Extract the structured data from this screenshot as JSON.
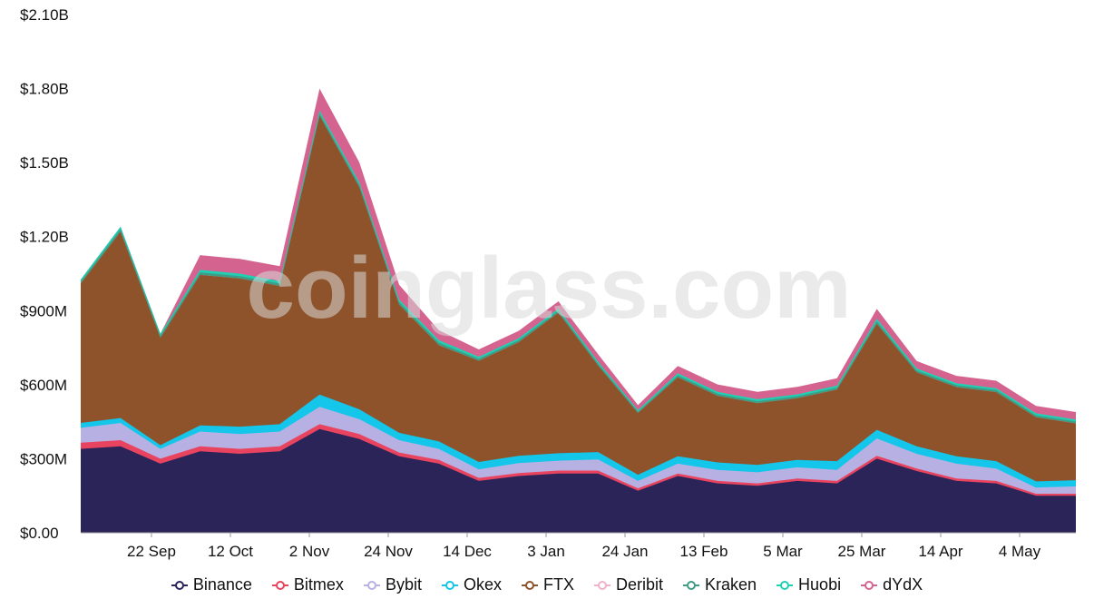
{
  "watermark": "coinglass.com",
  "chart_data": {
    "type": "area",
    "stacked": true,
    "ylim": [
      0,
      2100000000
    ],
    "yticks": [
      {
        "value": 0,
        "label": "$0.00"
      },
      {
        "value": 300000000,
        "label": "$300M"
      },
      {
        "value": 600000000,
        "label": "$600M"
      },
      {
        "value": 900000000,
        "label": "$900M"
      },
      {
        "value": 1200000000,
        "label": "$1.20B"
      },
      {
        "value": 1500000000,
        "label": "$1.50B"
      },
      {
        "value": 1800000000,
        "label": "$1.80B"
      },
      {
        "value": 2100000000,
        "label": "$2.10B"
      }
    ],
    "xticks": [
      "22 Sep",
      "12 Oct",
      "2 Nov",
      "24 Nov",
      "14 Dec",
      "3 Jan",
      "24 Jan",
      "13 Feb",
      "5 Mar",
      "25 Mar",
      "14 Apr",
      "4 May"
    ],
    "x": [
      "2 Sep",
      "12 Sep",
      "22 Sep",
      "2 Oct",
      "12 Oct",
      "22 Oct",
      "2 Nov",
      "12 Nov",
      "24 Nov",
      "4 Dec",
      "14 Dec",
      "24 Dec",
      "3 Jan",
      "13 Jan",
      "24 Jan",
      "3 Feb",
      "13 Feb",
      "23 Feb",
      "5 Mar",
      "15 Mar",
      "25 Mar",
      "4 Apr",
      "14 Apr",
      "24 Apr",
      "4 May",
      "14 May"
    ],
    "series": [
      {
        "name": "Binance",
        "color": "#2b2459",
        "values": [
          340,
          350,
          280,
          330,
          320,
          330,
          420,
          380,
          310,
          280,
          210,
          230,
          240,
          240,
          170,
          230,
          200,
          190,
          210,
          200,
          300,
          250,
          210,
          200,
          150,
          150
        ]
      },
      {
        "name": "Bitmex",
        "color": "#e8435f",
        "values": [
          25,
          25,
          20,
          20,
          20,
          20,
          20,
          20,
          15,
          15,
          12,
          12,
          12,
          12,
          10,
          10,
          10,
          10,
          10,
          10,
          12,
          10,
          10,
          10,
          8,
          8
        ]
      },
      {
        "name": "Bybit",
        "color": "#b7b0e2",
        "values": [
          60,
          70,
          40,
          60,
          60,
          60,
          70,
          60,
          50,
          45,
          35,
          40,
          40,
          45,
          30,
          40,
          45,
          45,
          45,
          45,
          70,
          60,
          60,
          50,
          25,
          30
        ]
      },
      {
        "name": "Okex",
        "color": "#13c6ea",
        "values": [
          20,
          20,
          15,
          25,
          30,
          30,
          50,
          40,
          30,
          30,
          30,
          30,
          30,
          30,
          25,
          30,
          30,
          30,
          30,
          35,
          35,
          30,
          30,
          30,
          25,
          25
        ]
      },
      {
        "name": "FTX",
        "color": "#8e532b",
        "values": [
          565,
          755,
          435,
          610,
          600,
          560,
          1130,
          900,
          520,
          390,
          410,
          460,
          570,
          350,
          250,
          320,
          270,
          250,
          250,
          290,
          430,
          300,
          280,
          280,
          260,
          230
        ]
      },
      {
        "name": "Deribit",
        "color": "#f0b2ca",
        "values": [
          0,
          0,
          0,
          0,
          0,
          0,
          0,
          0,
          0,
          0,
          0,
          0,
          0,
          0,
          0,
          0,
          0,
          0,
          0,
          0,
          0,
          0,
          0,
          0,
          0,
          0
        ]
      },
      {
        "name": "Kraken",
        "color": "#3e9d86",
        "values": [
          8,
          10,
          8,
          10,
          10,
          10,
          10,
          10,
          10,
          10,
          8,
          8,
          8,
          8,
          6,
          8,
          8,
          8,
          8,
          8,
          10,
          8,
          8,
          8,
          8,
          8
        ]
      },
      {
        "name": "Huobi",
        "color": "#1fd0b3",
        "values": [
          8,
          10,
          8,
          10,
          10,
          10,
          10,
          10,
          10,
          10,
          8,
          8,
          8,
          8,
          6,
          8,
          8,
          8,
          8,
          8,
          10,
          8,
          8,
          8,
          8,
          8
        ]
      },
      {
        "name": "dYdX",
        "color": "#d4648f",
        "values": [
          0,
          0,
          0,
          60,
          60,
          60,
          90,
          80,
          60,
          40,
          30,
          30,
          30,
          30,
          20,
          30,
          30,
          30,
          30,
          30,
          40,
          30,
          30,
          30,
          30,
          30
        ]
      }
    ],
    "value_unit": "millions USD",
    "legend_position": "bottom"
  }
}
